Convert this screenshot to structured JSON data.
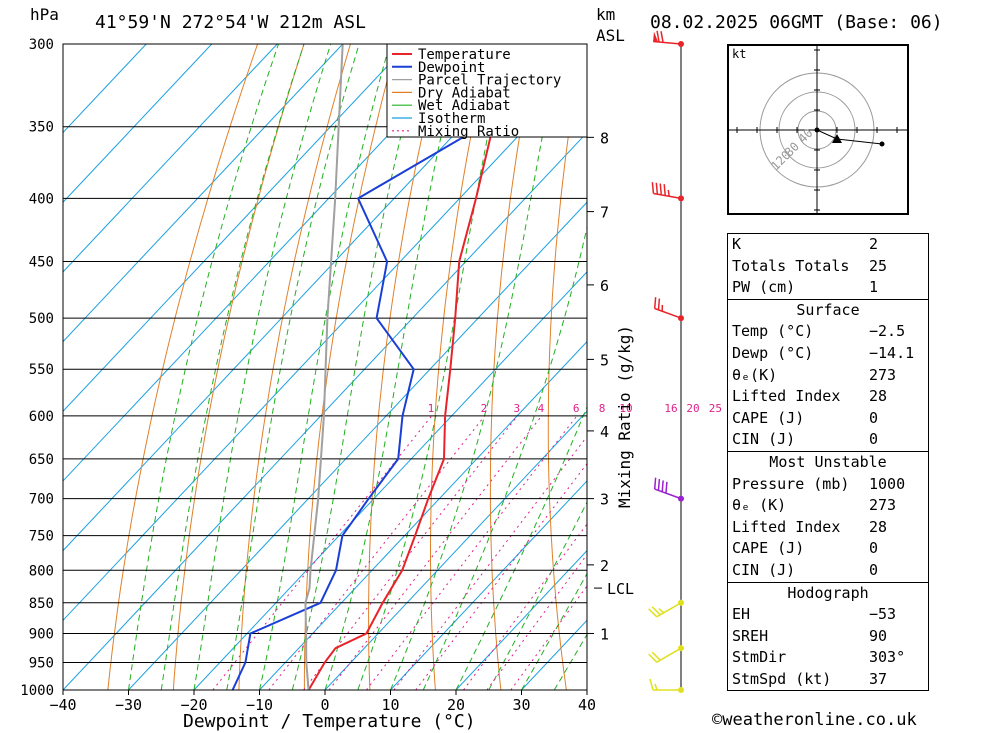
{
  "header": {
    "pressure_unit": "hPa",
    "location": "41°59'N  272°54'W  212m  ASL",
    "height_unit_top": "km",
    "height_unit_bottom": "ASL",
    "datetime": "08.02.2025  06GMT  (Base: 06)"
  },
  "colors": {
    "temperature": "#e8242a",
    "dewpoint": "#1a3fd6",
    "parcel": "#a0a0a0",
    "dry_adiabat": "#e0802a",
    "wet_adiabat": "#22b022",
    "isotherm": "#1aa0e0",
    "mixing_ratio": "#e0208a",
    "wind_low": "#e0e020",
    "wind_mid": "#9a20d0",
    "wind_high": "#e8242a"
  },
  "chart_data": {
    "type": "line",
    "title": "",
    "xlabel": "Dewpoint / Temperature (°C)",
    "ylabel": "hPa",
    "secondary_ylabel": "Mixing Ratio (g/kg)",
    "xlim": [
      -40,
      40
    ],
    "ylim": [
      1000,
      300
    ],
    "x_ticks": [
      -40,
      -30,
      -20,
      -10,
      0,
      10,
      20,
      30,
      40
    ],
    "x_tick_labels": [
      "−40",
      "−30",
      "−20",
      "−10",
      "0",
      "10",
      "20",
      "30",
      "40"
    ],
    "pressure_levels": [
      300,
      350,
      400,
      450,
      500,
      550,
      600,
      650,
      700,
      750,
      800,
      850,
      900,
      950,
      1000
    ],
    "km_levels": [
      {
        "label": "8",
        "p": 357
      },
      {
        "label": "7",
        "p": 410
      },
      {
        "label": "6",
        "p": 470
      },
      {
        "label": "5",
        "p": 540
      },
      {
        "label": "4",
        "p": 617
      },
      {
        "label": "3",
        "p": 700
      },
      {
        "label": "2",
        "p": 792
      },
      {
        "label": "1",
        "p": 900
      }
    ],
    "lcl": {
      "label": "LCL",
      "p": 827
    },
    "mixing_ratio_labels": [
      "1",
      "2",
      "3",
      "4",
      "6",
      "8",
      "10",
      "16",
      "20",
      "25"
    ],
    "legend": [
      "Temperature",
      "Dewpoint",
      "Parcel Trajectory",
      "Dry Adiabat",
      "Wet Adiabat",
      "Isotherm",
      "Mixing Ratio"
    ],
    "legend_position": "top-right",
    "series": [
      {
        "name": "Temperature",
        "points": [
          [
            1000,
            -2.5
          ],
          [
            950,
            -4
          ],
          [
            925,
            -4.4
          ],
          [
            900,
            -1.8
          ],
          [
            850,
            -3.7
          ],
          [
            800,
            -5.4
          ],
          [
            750,
            -8.4
          ],
          [
            700,
            -11.7
          ],
          [
            650,
            -15
          ],
          [
            600,
            -21
          ],
          [
            550,
            -26.9
          ],
          [
            500,
            -33.5
          ],
          [
            450,
            -41
          ],
          [
            400,
            -47.5
          ],
          [
            350,
            -55.2
          ],
          [
            300,
            -61
          ]
        ]
      },
      {
        "name": "Dewpoint",
        "points": [
          [
            1000,
            -14.1
          ],
          [
            950,
            -16.1
          ],
          [
            900,
            -19.5
          ],
          [
            850,
            -13.2
          ],
          [
            800,
            -15.5
          ],
          [
            750,
            -19.5
          ],
          [
            700,
            -20.8
          ],
          [
            650,
            -22
          ],
          [
            600,
            -27.5
          ],
          [
            550,
            -32.5
          ],
          [
            500,
            -45.5
          ],
          [
            450,
            -52
          ],
          [
            400,
            -65.5
          ],
          [
            350,
            -57
          ],
          [
            300,
            -69
          ]
        ]
      },
      {
        "name": "Parcel Trajectory",
        "points": [
          [
            1000,
            -2.5
          ],
          [
            950,
            -6.8
          ],
          [
            900,
            -11
          ],
          [
            850,
            -15.5
          ],
          [
            827,
            -17
          ],
          [
            800,
            -19.4
          ],
          [
            700,
            -28.5
          ],
          [
            600,
            -39.5
          ],
          [
            500,
            -53
          ],
          [
            400,
            -69
          ],
          [
            300,
            -90
          ]
        ]
      }
    ]
  },
  "winds": [
    {
      "p": 1000,
      "dir": 270,
      "kt": 15,
      "color_key": "wind_low"
    },
    {
      "p": 925,
      "dir": 240,
      "kt": 20,
      "color_key": "wind_low"
    },
    {
      "p": 850,
      "dir": 240,
      "kt": 25,
      "color_key": "wind_low"
    },
    {
      "p": 700,
      "dir": 290,
      "kt": 40,
      "color_key": "wind_mid"
    },
    {
      "p": 500,
      "dir": 290,
      "kt": 25,
      "color_key": "wind_high"
    },
    {
      "p": 400,
      "dir": 280,
      "kt": 45,
      "color_key": "wind_high"
    },
    {
      "p": 300,
      "dir": 275,
      "kt": 70,
      "color_key": "wind_high"
    }
  ],
  "hodograph": {
    "unit": "kt",
    "rings": [
      "40",
      "80",
      "120"
    ],
    "trace": [
      [
        0,
        0
      ],
      [
        20,
        -9
      ],
      [
        65,
        -14
      ]
    ],
    "storm_motion": [
      20,
      -9
    ]
  },
  "indices": {
    "k_label": "K",
    "k": "2",
    "tt_label": "Totals Totals",
    "tt": "25",
    "pw_label": "PW (cm)",
    "pw": "1",
    "surface_title": "Surface",
    "s_temp_label": "Temp (°C)",
    "s_temp": "−2.5",
    "s_dewp_label": "Dewp (°C)",
    "s_dewp": "−14.1",
    "s_theta_label": "θₑ(K)",
    "s_theta": "273",
    "s_li_label": "Lifted Index",
    "s_li": "28",
    "s_cape_label": "CAPE (J)",
    "s_cape": "0",
    "s_cin_label": "CIN (J)",
    "s_cin": "0",
    "mu_title": "Most Unstable",
    "mu_p_label": "Pressure (mb)",
    "mu_p": "1000",
    "mu_theta_label": "θₑ (K)",
    "mu_theta": "273",
    "mu_li_label": "Lifted Index",
    "mu_li": "28",
    "mu_cape_label": "CAPE (J)",
    "mu_cape": "0",
    "mu_cin_label": "CIN (J)",
    "mu_cin": "0",
    "hodo_title": "Hodograph",
    "eh_label": "EH",
    "eh": "−53",
    "sreh_label": "SREH",
    "sreh": "90",
    "stmdir_label": "StmDir",
    "stmdir": "303°",
    "stmspd_label": "StmSpd (kt)",
    "stmspd": "37"
  },
  "credit": "©weatheronline.co.uk"
}
